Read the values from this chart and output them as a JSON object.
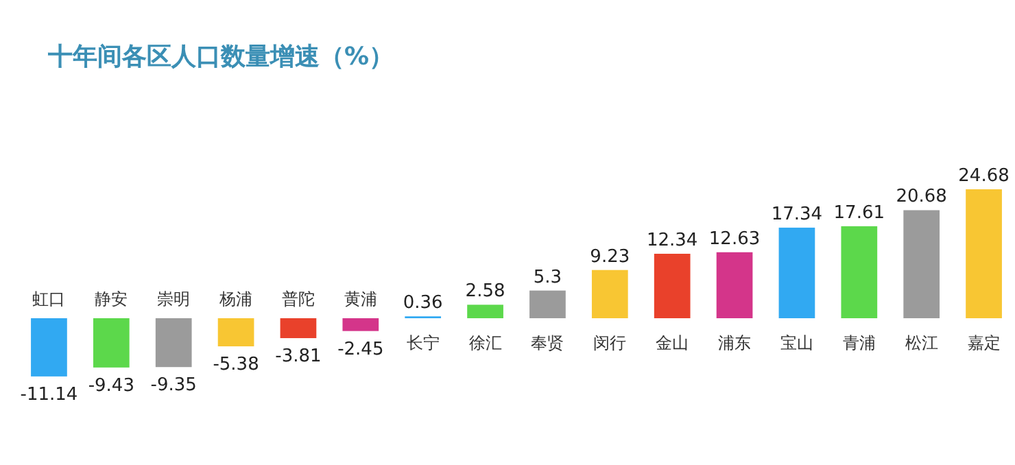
{
  "chart_data": {
    "type": "bar",
    "title": "十年间各区人口数量增速（%）",
    "categories": [
      "虹口",
      "静安",
      "崇明",
      "杨浦",
      "普陀",
      "黄浦",
      "长宁",
      "徐汇",
      "奉贤",
      "闵行",
      "金山",
      "浦东",
      "宝山",
      "青浦",
      "松江",
      "嘉定"
    ],
    "values": [
      -11.14,
      -9.43,
      -9.35,
      -5.38,
      -3.81,
      -2.45,
      0.36,
      2.58,
      5.3,
      9.23,
      12.34,
      12.63,
      17.34,
      17.61,
      20.68,
      24.68
    ],
    "colors": [
      "#31a9f2",
      "#5cd84b",
      "#9b9b9b",
      "#f8c633",
      "#e9412b",
      "#d4358a",
      "#31a9f2",
      "#5cd84b",
      "#9b9b9b",
      "#f8c633",
      "#e9412b",
      "#d4358a",
      "#31a9f2",
      "#5cd84b",
      "#9b9b9b",
      "#f8c633"
    ],
    "data_labels": true
  }
}
